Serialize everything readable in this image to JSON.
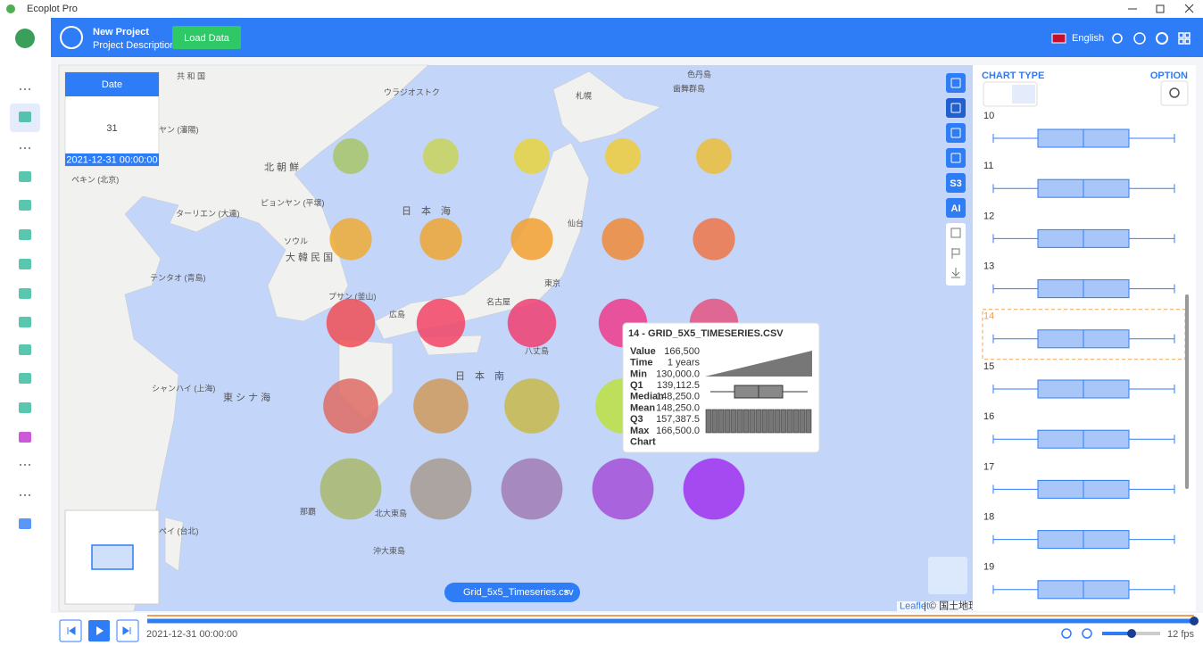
{
  "app": {
    "title": "Ecoplot Pro"
  },
  "header": {
    "project": "New Project",
    "description": "Project Description",
    "load": "Load Data",
    "language": "English"
  },
  "date_card": {
    "label": "Date",
    "day": "31",
    "datetime": "2021-12-31 00:00:00"
  },
  "toolbar": {
    "s3": "S3",
    "ai": "AI"
  },
  "map": {
    "labels": [
      "共 和 国",
      "ウラジオストク",
      "札幌",
      "色丹島",
      "歯舞群島",
      "ヤン (瀋陽)",
      "北 朝 鮮",
      "ペキン (北京)",
      "ターリエン (大連)",
      "ピョンヤン (平壌)",
      "ソウル",
      "大 韓 民 国",
      "テンタオ (青島)",
      "日　本　海",
      "仙台",
      "東京",
      "名古屋",
      "広島",
      "プサン (釜山)",
      "シャンハイ (上海)",
      "東 シ ナ 海",
      "八丈島",
      "那覇",
      "ペイ (台北)",
      "北大東島",
      "沖大東島",
      "日　本　南"
    ],
    "grid_colors": [
      [
        "#a8c66a",
        "#c9d45a",
        "#e8d440",
        "#eecb3a",
        "#ebbd3a"
      ],
      [
        "#eeaa35",
        "#eea534",
        "#f3a030",
        "#ee8a3a",
        "#ee7646"
      ],
      [
        "#ee4f55",
        "#f24465",
        "#f03e70",
        "#ee3a8c",
        "#e35483"
      ],
      [
        "#df6b64",
        "#cf9a5d",
        "#c8b84a",
        "#bde040",
        "#b8e048"
      ],
      [
        "#a9b86d",
        "#a89b92",
        "#a17cb5",
        "#a550d8",
        "#a030f0"
      ]
    ],
    "layer": "Grid_5x5_Timeseries.csv",
    "layer_close": "×",
    "leaflet": "Leaflet",
    "attribution": "| © 国土地理院"
  },
  "tooltip": {
    "title": "14 - GRID_5X5_TIMESERIES.CSV",
    "rows": [
      {
        "label": "Value",
        "value": "166,500"
      },
      {
        "label": "Time",
        "value": "1 years"
      },
      {
        "label": "Min",
        "value": "130,000.0"
      },
      {
        "label": "Q1",
        "value": "139,112.5"
      },
      {
        "label": "Median",
        "value": "148,250.0"
      },
      {
        "label": "Mean",
        "value": "148,250.0"
      },
      {
        "label": "Q3",
        "value": "157,387.5"
      },
      {
        "label": "Max",
        "value": "166,500.0"
      },
      {
        "label": "Chart",
        "value": ""
      }
    ]
  },
  "panel": {
    "chart_type": "CHART TYPE",
    "option": "OPTION",
    "rows": [
      10,
      11,
      12,
      13,
      14,
      15,
      16,
      17,
      18,
      19
    ],
    "selected": 14
  },
  "timeline": {
    "datetime": "2021-12-31 00:00:00",
    "fps": "12 fps"
  }
}
